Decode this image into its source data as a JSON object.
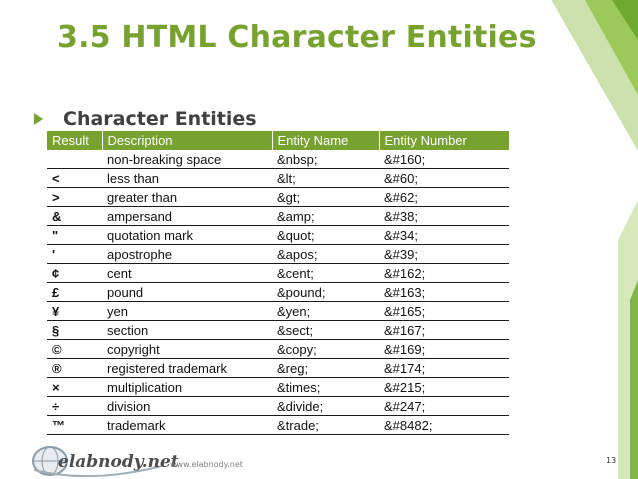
{
  "slide": {
    "title": "3.5 HTML Character Entities",
    "bullet": "Character Entities",
    "footer_url": "www.elabnody.net",
    "page_number": "13",
    "logo_text": "elabnody.net",
    "accent_color": "#78a22f"
  },
  "table": {
    "headers": [
      "Result",
      "Description",
      "Entity Name",
      "Entity Number"
    ],
    "rows": [
      {
        "result": "",
        "description": "non-breaking space",
        "entity_name": "&nbsp;",
        "entity_number": "&#160;"
      },
      {
        "result": "<",
        "description": "less than",
        "entity_name": "&lt;",
        "entity_number": "&#60;"
      },
      {
        "result": ">",
        "description": "greater than",
        "entity_name": "&gt;",
        "entity_number": "&#62;"
      },
      {
        "result": "&",
        "description": "ampersand",
        "entity_name": "&amp;",
        "entity_number": "&#38;"
      },
      {
        "result": "\"",
        "description": "quotation mark",
        "entity_name": "&quot;",
        "entity_number": "&#34;"
      },
      {
        "result": "'",
        "description": "apostrophe",
        "entity_name": "&apos;",
        "entity_number": "&#39;"
      },
      {
        "result": "¢",
        "description": "cent",
        "entity_name": "&cent;",
        "entity_number": "&#162;"
      },
      {
        "result": "£",
        "description": "pound",
        "entity_name": "&pound;",
        "entity_number": "&#163;"
      },
      {
        "result": "¥",
        "description": "yen",
        "entity_name": "&yen;",
        "entity_number": "&#165;"
      },
      {
        "result": "§",
        "description": "section",
        "entity_name": "&sect;",
        "entity_number": "&#167;"
      },
      {
        "result": "©",
        "description": "copyright",
        "entity_name": "&copy;",
        "entity_number": "&#169;"
      },
      {
        "result": "®",
        "description": "registered trademark",
        "entity_name": "&reg;",
        "entity_number": "&#174;"
      },
      {
        "result": "×",
        "description": "multiplication",
        "entity_name": "&times;",
        "entity_number": "&#215;"
      },
      {
        "result": "÷",
        "description": "division",
        "entity_name": "&divide;",
        "entity_number": "&#247;"
      },
      {
        "result": "™",
        "description": "trademark",
        "entity_name": "&trade;",
        "entity_number": "&#8482;"
      }
    ]
  }
}
